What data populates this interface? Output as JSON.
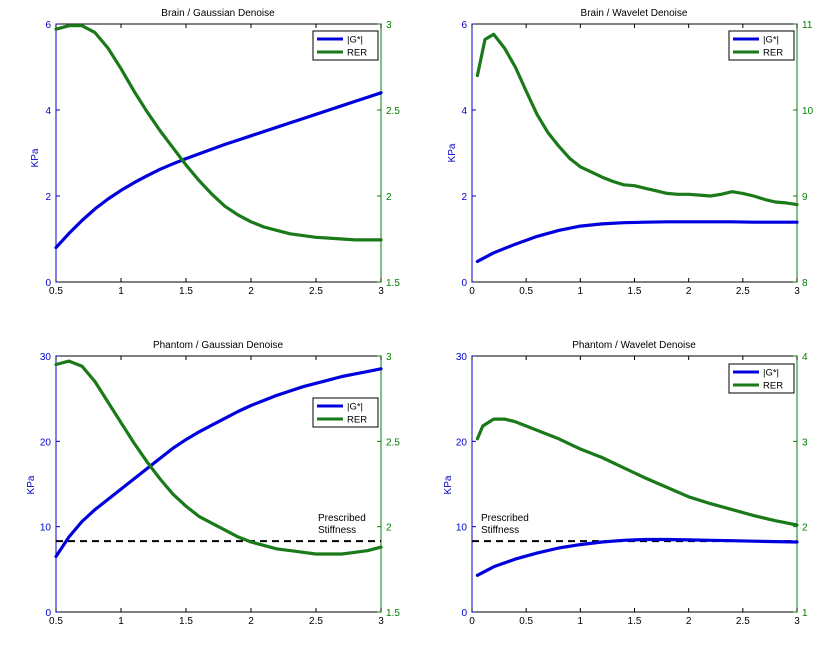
{
  "colors": {
    "left_axis": "#0000cc",
    "right_axis": "#008000",
    "gstar_line": "#0000dd",
    "rer_line": "#1a7a1a",
    "reference_line": "#000000",
    "frame": "#000000"
  },
  "chart_data": [
    {
      "type": "line",
      "title": "Brain / Gaussian Denoise",
      "ylabel": "KPa",
      "xlim": [
        0.5,
        3
      ],
      "xticks": [
        "0.5",
        "1",
        "1.5",
        "2",
        "2.5",
        "3"
      ],
      "ylim_left": [
        0,
        6
      ],
      "yticks_left": [
        "0",
        "2",
        "4",
        "6"
      ],
      "ylim_right": [
        1.5,
        3
      ],
      "yticks_right": [
        "1.5",
        "2",
        "2.5",
        "3"
      ],
      "legend": {
        "placement": "top-right",
        "entries": [
          "|G*|",
          "RER"
        ]
      },
      "series": [
        {
          "name": "|G*|",
          "axis": "left",
          "x": [
            0.5,
            0.6,
            0.7,
            0.8,
            0.9,
            1.0,
            1.1,
            1.2,
            1.3,
            1.4,
            1.5,
            1.6,
            1.7,
            1.8,
            1.9,
            2.0,
            2.1,
            2.2,
            2.3,
            2.4,
            2.5,
            2.6,
            2.7,
            2.8,
            2.9,
            3.0
          ],
          "y": [
            0.8,
            1.13,
            1.43,
            1.7,
            1.93,
            2.13,
            2.31,
            2.47,
            2.62,
            2.75,
            2.87,
            2.98,
            3.09,
            3.2,
            3.3,
            3.4,
            3.5,
            3.6,
            3.7,
            3.8,
            3.9,
            4.0,
            4.1,
            4.2,
            4.3,
            4.4
          ]
        },
        {
          "name": "RER",
          "axis": "right",
          "x": [
            0.5,
            0.6,
            0.7,
            0.8,
            0.9,
            1.0,
            1.1,
            1.2,
            1.3,
            1.4,
            1.5,
            1.6,
            1.7,
            1.8,
            1.9,
            2.0,
            2.1,
            2.2,
            2.3,
            2.4,
            2.5,
            2.6,
            2.7,
            2.8,
            2.9,
            3.0
          ],
          "y": [
            2.97,
            2.99,
            2.99,
            2.95,
            2.86,
            2.74,
            2.61,
            2.49,
            2.38,
            2.28,
            2.18,
            2.09,
            2.01,
            1.94,
            1.89,
            1.85,
            1.82,
            1.8,
            1.78,
            1.77,
            1.76,
            1.755,
            1.75,
            1.745,
            1.745,
            1.745
          ]
        }
      ]
    },
    {
      "type": "line",
      "title": "Brain / Wavelet Denoise",
      "ylabel": "KPa",
      "xlim": [
        0,
        3
      ],
      "xticks": [
        "0",
        "0.5",
        "1",
        "1.5",
        "2",
        "2.5",
        "3"
      ],
      "ylim_left": [
        0,
        6
      ],
      "yticks_left": [
        "0",
        "2",
        "4",
        "6"
      ],
      "ylim_right": [
        8,
        11
      ],
      "yticks_right": [
        "8",
        "9",
        "10",
        "11"
      ],
      "legend": {
        "placement": "top-right",
        "entries": [
          "|G*|",
          "RER"
        ]
      },
      "series": [
        {
          "name": "|G*|",
          "axis": "left",
          "x": [
            0.05,
            0.2,
            0.4,
            0.6,
            0.8,
            1.0,
            1.2,
            1.4,
            1.6,
            1.8,
            2.0,
            2.2,
            2.4,
            2.6,
            2.8,
            3.0
          ],
          "y": [
            0.48,
            0.68,
            0.88,
            1.06,
            1.2,
            1.3,
            1.35,
            1.38,
            1.39,
            1.4,
            1.4,
            1.4,
            1.4,
            1.39,
            1.39,
            1.39
          ]
        },
        {
          "name": "RER",
          "axis": "right",
          "x": [
            0.05,
            0.12,
            0.2,
            0.3,
            0.4,
            0.5,
            0.6,
            0.7,
            0.8,
            0.9,
            1.0,
            1.1,
            1.2,
            1.3,
            1.4,
            1.5,
            1.6,
            1.7,
            1.8,
            1.9,
            2.0,
            2.1,
            2.2,
            2.3,
            2.4,
            2.5,
            2.6,
            2.7,
            2.8,
            2.9,
            3.0
          ],
          "y": [
            10.4,
            10.82,
            10.88,
            10.72,
            10.5,
            10.22,
            9.95,
            9.74,
            9.58,
            9.44,
            9.34,
            9.28,
            9.22,
            9.17,
            9.13,
            9.12,
            9.09,
            9.06,
            9.03,
            9.02,
            9.02,
            9.01,
            9.0,
            9.02,
            9.05,
            9.03,
            9.0,
            8.96,
            8.93,
            8.92,
            8.9
          ]
        }
      ]
    },
    {
      "type": "line",
      "title": "Phantom / Gaussian Denoise",
      "ylabel": "KPa",
      "xlim": [
        0.5,
        3
      ],
      "xticks": [
        "0.5",
        "1",
        "1.5",
        "2",
        "2.5",
        "3"
      ],
      "ylim_left": [
        0,
        30
      ],
      "yticks_left": [
        "0",
        "10",
        "20",
        "30"
      ],
      "ylim_right": [
        1.5,
        3
      ],
      "yticks_right": [
        "1.5",
        "2",
        "2.5",
        "3"
      ],
      "legend": {
        "placement": "upper-right",
        "entries": [
          "|G*|",
          "RER"
        ]
      },
      "reference_line": {
        "y": 8.3,
        "label": [
          "Prescribed",
          "Stiffness"
        ]
      },
      "series": [
        {
          "name": "|G*|",
          "axis": "left",
          "x": [
            0.5,
            0.6,
            0.7,
            0.8,
            0.9,
            1.0,
            1.1,
            1.2,
            1.3,
            1.4,
            1.5,
            1.6,
            1.7,
            1.8,
            1.9,
            2.0,
            2.1,
            2.2,
            2.3,
            2.4,
            2.5,
            2.6,
            2.7,
            2.8,
            2.9,
            3.0
          ],
          "y": [
            6.5,
            8.8,
            10.6,
            12.0,
            13.2,
            14.4,
            15.6,
            16.8,
            18.0,
            19.2,
            20.2,
            21.1,
            21.9,
            22.7,
            23.5,
            24.2,
            24.8,
            25.4,
            25.9,
            26.4,
            26.8,
            27.2,
            27.6,
            27.9,
            28.2,
            28.5
          ]
        },
        {
          "name": "RER",
          "axis": "right",
          "x": [
            0.5,
            0.6,
            0.7,
            0.8,
            0.9,
            1.0,
            1.1,
            1.2,
            1.3,
            1.4,
            1.5,
            1.6,
            1.7,
            1.8,
            1.9,
            2.0,
            2.1,
            2.2,
            2.3,
            2.4,
            2.5,
            2.6,
            2.7,
            2.8,
            2.9,
            3.0
          ],
          "y": [
            2.95,
            2.97,
            2.94,
            2.85,
            2.73,
            2.61,
            2.49,
            2.38,
            2.28,
            2.19,
            2.12,
            2.06,
            2.02,
            1.98,
            1.94,
            1.91,
            1.89,
            1.87,
            1.86,
            1.85,
            1.84,
            1.84,
            1.84,
            1.85,
            1.86,
            1.88
          ]
        }
      ]
    },
    {
      "type": "line",
      "title": "Phantom / Wavelet Denoise",
      "ylabel": "KPa",
      "xlim": [
        0,
        3
      ],
      "xticks": [
        "0",
        "0.5",
        "1",
        "1.5",
        "2",
        "2.5",
        "3"
      ],
      "ylim_left": [
        0,
        30
      ],
      "yticks_left": [
        "0",
        "10",
        "20",
        "30"
      ],
      "ylim_right": [
        1,
        4
      ],
      "yticks_right": [
        "1",
        "2",
        "3",
        "4"
      ],
      "legend": {
        "placement": "top-right",
        "entries": [
          "|G*|",
          "RER"
        ]
      },
      "reference_line": {
        "y": 8.3,
        "label": [
          "Prescribed",
          "Stiffness"
        ]
      },
      "series": [
        {
          "name": "|G*|",
          "axis": "left",
          "x": [
            0.05,
            0.2,
            0.4,
            0.6,
            0.8,
            1.0,
            1.2,
            1.4,
            1.6,
            1.8,
            2.0,
            2.2,
            2.4,
            2.6,
            2.8,
            3.0
          ],
          "y": [
            4.3,
            5.3,
            6.2,
            6.9,
            7.5,
            7.9,
            8.2,
            8.4,
            8.5,
            8.5,
            8.45,
            8.4,
            8.35,
            8.3,
            8.25,
            8.2
          ]
        },
        {
          "name": "RER",
          "axis": "right",
          "x": [
            0.05,
            0.1,
            0.2,
            0.3,
            0.4,
            0.5,
            0.6,
            0.7,
            0.8,
            0.9,
            1.0,
            1.2,
            1.4,
            1.6,
            1.8,
            2.0,
            2.2,
            2.4,
            2.6,
            2.8,
            3.0
          ],
          "y": [
            3.03,
            3.18,
            3.26,
            3.26,
            3.23,
            3.18,
            3.13,
            3.08,
            3.03,
            2.97,
            2.91,
            2.81,
            2.69,
            2.57,
            2.46,
            2.35,
            2.27,
            2.2,
            2.13,
            2.07,
            2.02
          ]
        }
      ]
    }
  ]
}
